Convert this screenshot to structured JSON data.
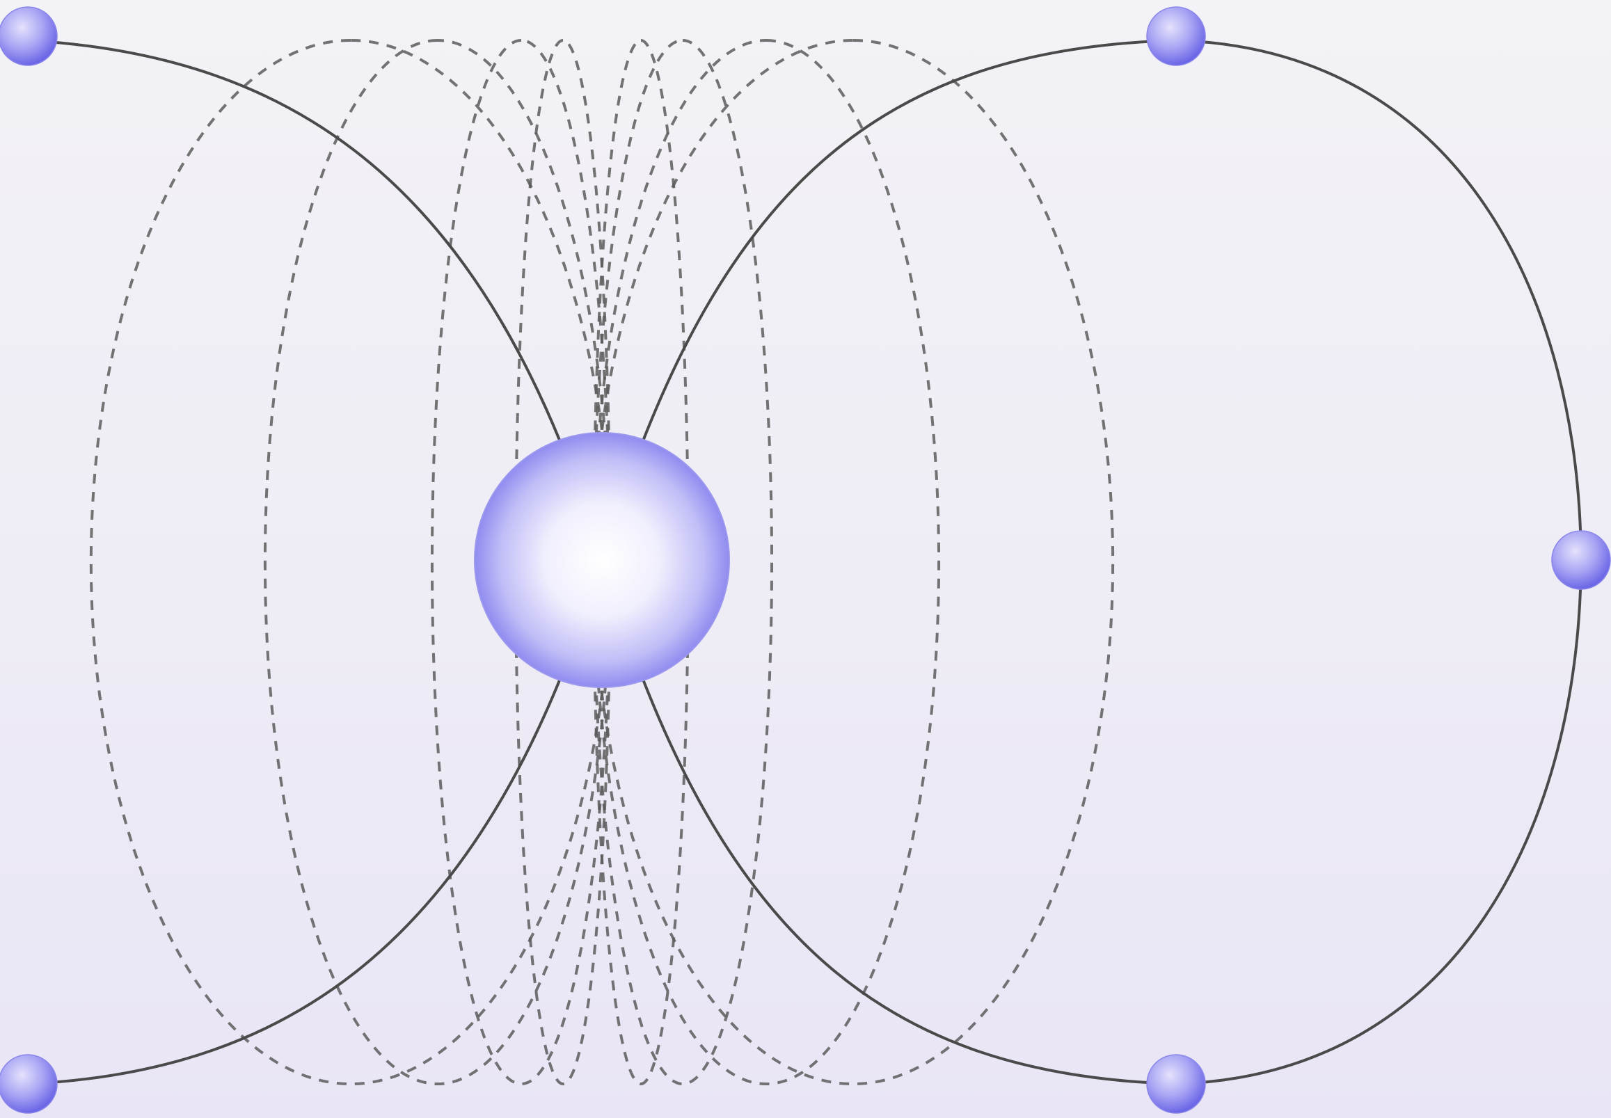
{
  "diagram": {
    "type": "field-lines",
    "text_labels": [],
    "colors": {
      "background_top": "#f3f2f6",
      "background_bottom": "#e9e5f6",
      "field_line": "#5c5c5c",
      "solid_line": "#4a4a4a",
      "central_sphere_highlight": "#ffffff",
      "central_sphere_shade": "#8f8cf0",
      "node_sphere_highlight": "#d8d6fb",
      "node_sphere_shade": "#6b66e6"
    },
    "field_lines": {
      "style": "dashed",
      "loops_per_side": 4
    },
    "orbit_lines": {
      "style": "solid",
      "count": 2
    },
    "central_body": {
      "shape": "sphere"
    },
    "nodes": {
      "count": 5,
      "shape": "sphere"
    }
  }
}
